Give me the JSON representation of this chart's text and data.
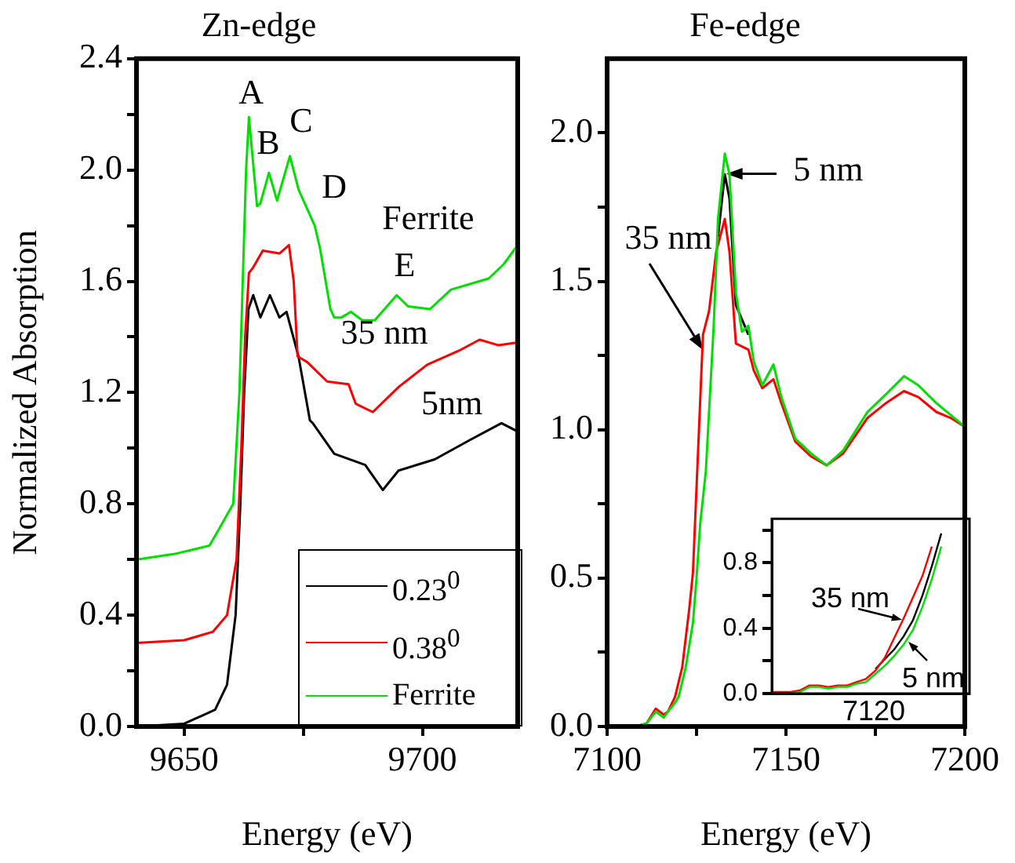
{
  "chart_data": [
    {
      "type": "line",
      "title": "Zn-edge",
      "xlabel": "Energy (eV)",
      "ylabel": "Normalized Absorption",
      "xlim": [
        9640,
        9720
      ],
      "xticks": [
        9650,
        {
          "value": 9675,
          "label": null
        },
        9700
      ],
      "ylim": [
        0,
        2.4
      ],
      "yticks": [
        {
          "value": 0,
          "label": "0.0"
        },
        {
          "value": 0.2,
          "label": null
        },
        0.4,
        {
          "value": 0.6,
          "label": null
        },
        0.8,
        {
          "value": 1,
          "label": null
        },
        1.2,
        {
          "value": 1.4,
          "label": null
        },
        1.6,
        {
          "value": 1.8,
          "label": null
        },
        {
          "value": 2,
          "label": "2.0"
        },
        {
          "value": 2.2,
          "label": null
        },
        2.4
      ],
      "grid": false,
      "legend": "bottom right",
      "marker": "none",
      "series": [
        {
          "name": "0.23$^{0}$",
          "color": "#000000",
          "x": [
            9640,
            9650,
            9656.5,
            9659,
            9660.8,
            9661.8,
            9662.6,
            9663.5,
            9664.5,
            9666,
            9668,
            9670,
            9671.5,
            9674,
            9676.4,
            9677,
            9681.5,
            9688,
            9691.7,
            9695,
            9702.6,
            9710,
            9716.6,
            9720
          ],
          "values": [
            0,
            0.01,
            0.06,
            0.15,
            0.4,
            0.8,
            1.2,
            1.5,
            1.55,
            1.47,
            1.55,
            1.47,
            1.49,
            1.33,
            1.1,
            1.09,
            0.98,
            0.94,
            0.85,
            0.92,
            0.96,
            1.03,
            1.09,
            1.06
          ]
        },
        {
          "name": "0.38$^{0}$",
          "color": "#ff0000",
          "x": [
            9640,
            9650,
            9656,
            9659,
            9661,
            9662,
            9662.8,
            9663.6,
            9664.5,
            9666.5,
            9670,
            9672,
            9673,
            9673.8,
            9675.8,
            9680,
            9684.5,
            9686,
            9689.6,
            9695,
            9701,
            9707.6,
            9712,
            9716,
            9720
          ],
          "values": [
            0.3,
            0.31,
            0.34,
            0.4,
            0.6,
            1.0,
            1.4,
            1.63,
            1.65,
            1.71,
            1.7,
            1.73,
            1.6,
            1.33,
            1.31,
            1.24,
            1.23,
            1.16,
            1.13,
            1.22,
            1.3,
            1.35,
            1.39,
            1.37,
            1.38
          ]
        },
        {
          "name": "Ferrite",
          "color": "#00e000",
          "x": [
            9640,
            9648,
            9655.3,
            9657,
            9660.3,
            9661.6,
            9662.3,
            9663,
            9663.6,
            9665.3,
            9666,
            9667.8,
            9669.5,
            9672.2,
            9674,
            9677.4,
            9678.5,
            9680.7,
            9681.5,
            9683,
            9685,
            9687.4,
            9690,
            9694.6,
            9697,
            9701.6,
            9706,
            9713.9,
            9717,
            9720
          ],
          "values": [
            0.6,
            0.62,
            0.65,
            0.7,
            0.8,
            1.2,
            1.6,
            2.0,
            2.19,
            1.87,
            1.88,
            1.99,
            1.89,
            2.05,
            1.93,
            1.8,
            1.72,
            1.5,
            1.47,
            1.47,
            1.49,
            1.46,
            1.46,
            1.55,
            1.51,
            1.5,
            1.57,
            1.61,
            1.66,
            1.73
          ]
        }
      ],
      "annotations": [
        "A",
        "B",
        "C",
        "D",
        "Ferrite",
        "E",
        "35 nm",
        "5nm"
      ]
    },
    {
      "type": "line",
      "title": "Fe-edge",
      "xlabel": "Energy (eV)",
      "xlim": [
        7100,
        7200
      ],
      "xticks": [
        7100,
        {
          "value": 7125,
          "label": null
        },
        7150,
        {
          "value": 7175,
          "label": null
        },
        7200
      ],
      "ylim": [
        0,
        2.25
      ],
      "yticks": [
        {
          "value": 0,
          "label": "0.0"
        },
        {
          "value": 0.25,
          "label": null
        },
        0.5,
        {
          "value": 0.75,
          "label": null
        },
        {
          "value": 1,
          "label": "1.0"
        },
        {
          "value": 1.25,
          "label": null
        },
        1.5,
        {
          "value": 1.75,
          "label": null
        },
        {
          "value": 2,
          "label": "2.0"
        }
      ],
      "grid": false,
      "marker": "none",
      "series": [
        {
          "color": "#000000",
          "x": [
            7131,
            7132.9,
            7134.2,
            7136,
            7139.5
          ],
          "values": [
            1.65,
            1.86,
            1.78,
            1.42,
            1.32
          ]
        },
        {
          "color": "#ff0000",
          "x": [
            7108,
            7111,
            7113.6,
            7115.8,
            7117,
            7119,
            7121,
            7123,
            7124,
            7125.4,
            7126.8,
            7128.5,
            7130.5,
            7132.9,
            7134.2,
            7136,
            7139.5,
            7141,
            7143.4,
            7146.5,
            7148.7,
            7152.6,
            7157,
            7161.4,
            7166,
            7172.8,
            7178,
            7183,
            7187,
            7192,
            7196,
            7200
          ],
          "values": [
            0,
            0.01,
            0.06,
            0.04,
            0.05,
            0.1,
            0.2,
            0.4,
            0.52,
            0.92,
            1.32,
            1.4,
            1.6,
            1.71,
            1.6,
            1.29,
            1.27,
            1.2,
            1.14,
            1.17,
            1.09,
            0.96,
            0.91,
            0.88,
            0.92,
            1.04,
            1.09,
            1.13,
            1.11,
            1.06,
            1.04,
            1.01
          ]
        },
        {
          "color": "#00e000",
          "x": [
            7108,
            7111,
            7113.6,
            7115.8,
            7117,
            7119,
            7120,
            7122,
            7124,
            7125,
            7126,
            7127.6,
            7129.8,
            7131,
            7132.9,
            7134.2,
            7136,
            7137.7,
            7139.5,
            7141,
            7143.4,
            7146.5,
            7148.7,
            7152.6,
            7157,
            7161.4,
            7166,
            7172.8,
            7178,
            7183,
            7187,
            7192,
            7200
          ],
          "values": [
            0,
            0.01,
            0.05,
            0.03,
            0.05,
            0.08,
            0.1,
            0.2,
            0.35,
            0.5,
            0.68,
            0.86,
            1.35,
            1.71,
            1.93,
            1.86,
            1.46,
            1.33,
            1.35,
            1.23,
            1.15,
            1.22,
            1.11,
            0.97,
            0.92,
            0.88,
            0.93,
            1.06,
            1.12,
            1.18,
            1.15,
            1.09,
            1.01
          ]
        }
      ],
      "annotations": [
        {
          "text": "35 nm",
          "x": 7126.8,
          "y": 1.27
        },
        {
          "text": "5 nm",
          "x": 7133.3,
          "y": 1.86
        }
      ]
    },
    {
      "type": "line",
      "categories": [
        null,
        null,
        null,
        null,
        null,
        null,
        null,
        null,
        null,
        null,
        null,
        null,
        null,
        null,
        null,
        null,
        null,
        null,
        null,
        null,
        null,
        null
      ],
      "ylim": [
        0,
        1.07
      ],
      "yticks": [
        {
          "value": 0,
          "label": "0.0"
        },
        {
          "value": 0.2,
          "label": null
        },
        0.4,
        {
          "value": 0.6,
          "label": null
        },
        0.8,
        {
          "value": 1,
          "label": null
        }
      ],
      "grid": false,
      "marker": "none",
      "tick_labels": "y",
      "series": [
        {
          "color": "#000000",
          "values": [
            null,
            null,
            null,
            null,
            null,
            null,
            null,
            null,
            null,
            null,
            null,
            0.15,
            0.21,
            0.27,
            0.35,
            0.45,
            0.6,
            0.78,
            0.98,
            null,
            null,
            null
          ]
        },
        {
          "color": "#ff0000",
          "values": [
            0.01,
            0.01,
            0.01,
            0.02,
            0.05,
            0.05,
            0.04,
            0.05,
            0.05,
            0.07,
            0.09,
            0.14,
            0.22,
            0.34,
            0.46,
            0.59,
            0.72,
            0.9,
            null,
            null,
            null,
            null
          ]
        },
        {
          "color": "#00e000",
          "values": [
            null,
            null,
            0,
            0.01,
            0.04,
            0.04,
            0.03,
            0.04,
            0.04,
            0.06,
            0.07,
            0.12,
            0.17,
            0.23,
            0.3,
            0.39,
            0.53,
            0.7,
            0.9,
            null,
            null,
            null
          ]
        }
      ],
      "annotations": [
        "35 nm",
        "5 nm",
        "7120"
      ]
    }
  ]
}
